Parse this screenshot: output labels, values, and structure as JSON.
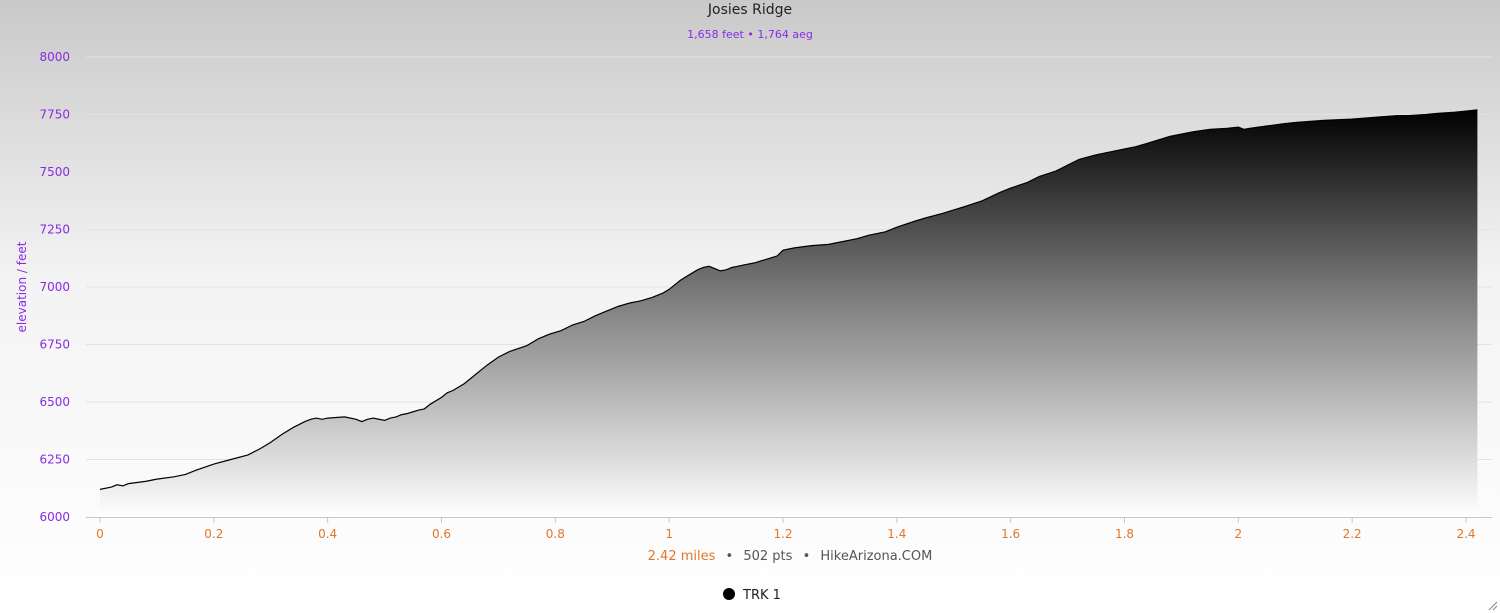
{
  "chart_data": {
    "type": "area",
    "title": "Josies Ridge",
    "subtitle": "1,658 feet • 1,764 aeg",
    "ylabel": "elevation / feet",
    "xlabel_parts": {
      "distance": "2.42 miles",
      "sep1": "•",
      "points": "502 pts",
      "sep2": "•",
      "source": "HikeArizona.COM"
    },
    "xlim": [
      0,
      2.42
    ],
    "ylim": [
      6000,
      8000
    ],
    "x_ticks": [
      "0",
      "0.2",
      "0.4",
      "0.6",
      "0.8",
      "1",
      "1.2",
      "1.4",
      "1.6",
      "1.8",
      "2",
      "2.2",
      "2.4"
    ],
    "x_tick_values": [
      0,
      0.2,
      0.4,
      0.6,
      0.8,
      1.0,
      1.2,
      1.4,
      1.6,
      1.8,
      2.0,
      2.2,
      2.4
    ],
    "y_ticks": [
      "6000",
      "6250",
      "6500",
      "6750",
      "7000",
      "7250",
      "7500",
      "7750",
      "8000"
    ],
    "y_tick_values": [
      6000,
      6250,
      6500,
      6750,
      7000,
      7250,
      7500,
      7750,
      8000
    ],
    "grid": true,
    "legend": {
      "placement": "bottom-center"
    },
    "colors": {
      "title": "#222222",
      "subtitle": "#8a2be2",
      "ylabel": "#8a2be2",
      "xticks": "#e0782b",
      "distance": "#e0782b",
      "points": "#555555"
    },
    "series": [
      {
        "name": "TRK 1",
        "x": [
          0,
          0.02,
          0.03,
          0.04,
          0.05,
          0.08,
          0.1,
          0.13,
          0.15,
          0.17,
          0.2,
          0.23,
          0.26,
          0.28,
          0.3,
          0.32,
          0.34,
          0.36,
          0.37,
          0.38,
          0.39,
          0.4,
          0.43,
          0.45,
          0.46,
          0.47,
          0.48,
          0.5,
          0.51,
          0.52,
          0.53,
          0.54,
          0.56,
          0.57,
          0.58,
          0.6,
          0.61,
          0.62,
          0.64,
          0.65,
          0.67,
          0.68,
          0.7,
          0.72,
          0.75,
          0.77,
          0.79,
          0.81,
          0.83,
          0.85,
          0.87,
          0.89,
          0.91,
          0.93,
          0.95,
          0.97,
          0.99,
          1.0,
          1.01,
          1.02,
          1.03,
          1.04,
          1.05,
          1.06,
          1.07,
          1.08,
          1.09,
          1.1,
          1.11,
          1.12,
          1.13,
          1.15,
          1.17,
          1.19,
          1.2,
          1.22,
          1.25,
          1.28,
          1.3,
          1.33,
          1.35,
          1.38,
          1.4,
          1.43,
          1.45,
          1.48,
          1.5,
          1.52,
          1.55,
          1.58,
          1.6,
          1.63,
          1.65,
          1.68,
          1.7,
          1.72,
          1.75,
          1.78,
          1.8,
          1.82,
          1.84,
          1.86,
          1.88,
          1.9,
          1.92,
          1.95,
          1.98,
          2.0,
          2.01,
          2.02,
          2.05,
          2.08,
          2.1,
          2.15,
          2.2,
          2.25,
          2.28,
          2.3,
          2.33,
          2.35,
          2.38,
          2.4,
          2.42
        ],
        "y": [
          6120,
          6130,
          6140,
          6135,
          6145,
          6155,
          6165,
          6175,
          6185,
          6205,
          6230,
          6250,
          6270,
          6295,
          6325,
          6360,
          6390,
          6415,
          6425,
          6430,
          6425,
          6430,
          6435,
          6425,
          6415,
          6425,
          6430,
          6420,
          6430,
          6435,
          6445,
          6450,
          6465,
          6470,
          6490,
          6520,
          6540,
          6550,
          6580,
          6600,
          6640,
          6660,
          6695,
          6720,
          6745,
          6775,
          6795,
          6810,
          6835,
          6850,
          6875,
          6895,
          6915,
          6930,
          6940,
          6955,
          6975,
          6990,
          7010,
          7030,
          7045,
          7060,
          7075,
          7085,
          7090,
          7080,
          7070,
          7075,
          7085,
          7090,
          7095,
          7105,
          7120,
          7135,
          7160,
          7170,
          7180,
          7185,
          7195,
          7210,
          7225,
          7240,
          7260,
          7285,
          7300,
          7320,
          7335,
          7350,
          7375,
          7410,
          7430,
          7455,
          7480,
          7505,
          7530,
          7555,
          7575,
          7590,
          7600,
          7610,
          7625,
          7640,
          7655,
          7665,
          7675,
          7685,
          7690,
          7695,
          7685,
          7690,
          7700,
          7710,
          7715,
          7725,
          7730,
          7740,
          7745,
          7745,
          7750,
          7755,
          7760,
          7765,
          7770
        ]
      }
    ]
  }
}
